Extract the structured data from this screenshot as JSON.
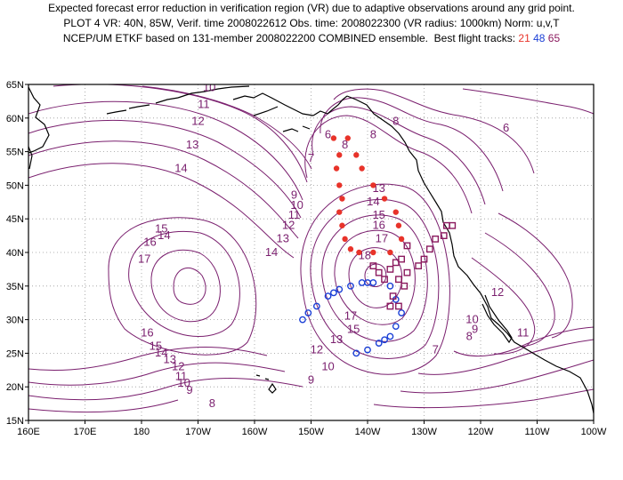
{
  "title": {
    "line1": "Expected forecast error reduction in verification region (VR) due to adaptive observations around any grid point.",
    "line2": "PLOT 4 VR: 40N, 85W, Verif. time 2008022612 Obs. time: 2008022300 (VR radius: 1000km) Norm: u,v,T",
    "line3_prefix": "NCEP/UM ETKF based on 131-member 2008022200 COMBINED ensemble.  Best flight tracks:",
    "track_a": "21",
    "track_b": "48",
    "track_c": "65"
  },
  "colors": {
    "contour": "#7a1f6e",
    "track_a": "#e8332a",
    "track_b": "#1a3fd6",
    "track_c": "#8b1a5e",
    "coast": "#000000",
    "grid": "#999999"
  },
  "axes": {
    "lon_labels": [
      "160E",
      "170E",
      "180",
      "170W",
      "160W",
      "150W",
      "140W",
      "130W",
      "120W",
      "110W",
      "100W"
    ],
    "lat_labels": [
      "15N",
      "20N",
      "25N",
      "30N",
      "35N",
      "40N",
      "45N",
      "50N",
      "55N",
      "60N",
      "65N"
    ]
  },
  "contour_labels": [
    {
      "text": "10",
      "lon": -168,
      "lat": 64
    },
    {
      "text": "11",
      "lon": -169,
      "lat": 61.5
    },
    {
      "text": "12",
      "lon": -170,
      "lat": 59
    },
    {
      "text": "13",
      "lon": -171,
      "lat": 55.5
    },
    {
      "text": "14",
      "lon": -173,
      "lat": 52
    },
    {
      "text": "14",
      "lon": -176,
      "lat": 42
    },
    {
      "text": "15",
      "lon": -176.5,
      "lat": 43
    },
    {
      "text": "16",
      "lon": -178.5,
      "lat": 41
    },
    {
      "text": "17",
      "lon": -179.5,
      "lat": 38.5
    },
    {
      "text": "16",
      "lon": -179,
      "lat": 27.5
    },
    {
      "text": "15",
      "lon": -177.5,
      "lat": 25.5
    },
    {
      "text": "14",
      "lon": -176.5,
      "lat": 24.5
    },
    {
      "text": "13",
      "lon": -175,
      "lat": 23.5
    },
    {
      "text": "12",
      "lon": -173.5,
      "lat": 22.5
    },
    {
      "text": "11",
      "lon": -173,
      "lat": 21
    },
    {
      "text": "10",
      "lon": -172.5,
      "lat": 20
    },
    {
      "text": "9",
      "lon": -171.5,
      "lat": 19
    },
    {
      "text": "8",
      "lon": -167.5,
      "lat": 17
    },
    {
      "text": "6",
      "lon": -147,
      "lat": 57
    },
    {
      "text": "7",
      "lon": -150,
      "lat": 53.5
    },
    {
      "text": "8",
      "lon": -144,
      "lat": 55.5
    },
    {
      "text": "8",
      "lon": -135,
      "lat": 59
    },
    {
      "text": "8",
      "lon": -139,
      "lat": 57
    },
    {
      "text": "9",
      "lon": -153,
      "lat": 48
    },
    {
      "text": "10",
      "lon": -152.5,
      "lat": 46.5
    },
    {
      "text": "11",
      "lon": -153,
      "lat": 45
    },
    {
      "text": "12",
      "lon": -154,
      "lat": 43.5
    },
    {
      "text": "13",
      "lon": -155,
      "lat": 41.5
    },
    {
      "text": "14",
      "lon": -157,
      "lat": 39.5
    },
    {
      "text": "13",
      "lon": -138,
      "lat": 49
    },
    {
      "text": "14",
      "lon": -139,
      "lat": 47
    },
    {
      "text": "15",
      "lon": -138,
      "lat": 45
    },
    {
      "text": "16",
      "lon": -138,
      "lat": 43.5
    },
    {
      "text": "17",
      "lon": -137.5,
      "lat": 41.5
    },
    {
      "text": "18",
      "lon": -140.5,
      "lat": 39
    },
    {
      "text": "17",
      "lon": -143,
      "lat": 30
    },
    {
      "text": "15",
      "lon": -142.5,
      "lat": 28
    },
    {
      "text": "13",
      "lon": -145.5,
      "lat": 26.5
    },
    {
      "text": "12",
      "lon": -149,
      "lat": 25
    },
    {
      "text": "10",
      "lon": -147,
      "lat": 22.5
    },
    {
      "text": "9",
      "lon": -150,
      "lat": 20.5
    },
    {
      "text": "6",
      "lon": -115.5,
      "lat": 58
    },
    {
      "text": "12",
      "lon": -117,
      "lat": 33.5
    },
    {
      "text": "11",
      "lon": -112.5,
      "lat": 27.5
    },
    {
      "text": "10",
      "lon": -121.5,
      "lat": 29.5
    },
    {
      "text": "9",
      "lon": -121,
      "lat": 28
    },
    {
      "text": "8",
      "lon": -122,
      "lat": 27
    },
    {
      "text": "7",
      "lon": -128,
      "lat": 25
    }
  ],
  "track_a_points": [
    [
      -146,
      57
    ],
    [
      -143.5,
      57
    ],
    [
      -145,
      54.5
    ],
    [
      -142,
      54.5
    ],
    [
      -145.5,
      52.5
    ],
    [
      -141,
      52.5
    ],
    [
      -145,
      50
    ],
    [
      -139,
      50
    ],
    [
      -144.5,
      48
    ],
    [
      -137,
      48
    ],
    [
      -145,
      46
    ],
    [
      -135,
      46
    ],
    [
      -144.5,
      44
    ],
    [
      -134.5,
      44
    ],
    [
      -144,
      42
    ],
    [
      -134,
      42
    ],
    [
      -143,
      40.5
    ],
    [
      -141.5,
      40
    ],
    [
      -139,
      40
    ],
    [
      -136,
      40
    ]
  ],
  "track_b_points": [
    [
      -151.5,
      30
    ],
    [
      -150.5,
      31
    ],
    [
      -149,
      32
    ],
    [
      -147,
      33.5
    ],
    [
      -146,
      34
    ],
    [
      -145,
      34.5
    ],
    [
      -143,
      35
    ],
    [
      -141,
      35.5
    ],
    [
      -140,
      35.5
    ],
    [
      -139,
      35.5
    ],
    [
      -136,
      35
    ],
    [
      -135,
      33
    ],
    [
      -134,
      31
    ],
    [
      -135,
      29
    ],
    [
      -136,
      27.5
    ],
    [
      -137,
      27
    ],
    [
      -138,
      26.5
    ],
    [
      -140,
      25.5
    ],
    [
      -142,
      25
    ]
  ],
  "track_c_points": [
    [
      -137,
      36
    ],
    [
      -138,
      37
    ],
    [
      -139,
      38
    ],
    [
      -136,
      37.5
    ],
    [
      -135,
      38.5
    ],
    [
      -134.5,
      36
    ],
    [
      -135.5,
      33.5
    ],
    [
      -136,
      32
    ],
    [
      -134.5,
      32
    ],
    [
      -133.5,
      35
    ],
    [
      -133,
      37
    ],
    [
      -134,
      39
    ],
    [
      -131,
      38
    ],
    [
      -130,
      39
    ],
    [
      -129,
      40.5
    ],
    [
      -128,
      42
    ],
    [
      -126.5,
      42.5
    ],
    [
      -126,
      44
    ],
    [
      -125,
      44
    ],
    [
      -133,
      41
    ]
  ]
}
